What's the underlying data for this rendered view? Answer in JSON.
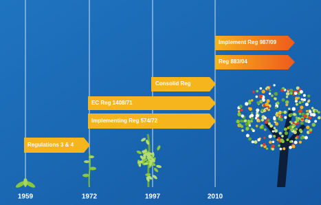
{
  "timeline": {
    "years": [
      "1959",
      "1972",
      "1997",
      "2010"
    ],
    "arrows": [
      {
        "label": "Regulations 3 & 4"
      },
      {
        "label": "EC Reg 1408/71"
      },
      {
        "label": "Implementing Reg 574/72"
      },
      {
        "label": "Consolid Reg"
      },
      {
        "label": "Implement Reg 987/09"
      },
      {
        "label": "Reg 883/04"
      }
    ]
  }
}
